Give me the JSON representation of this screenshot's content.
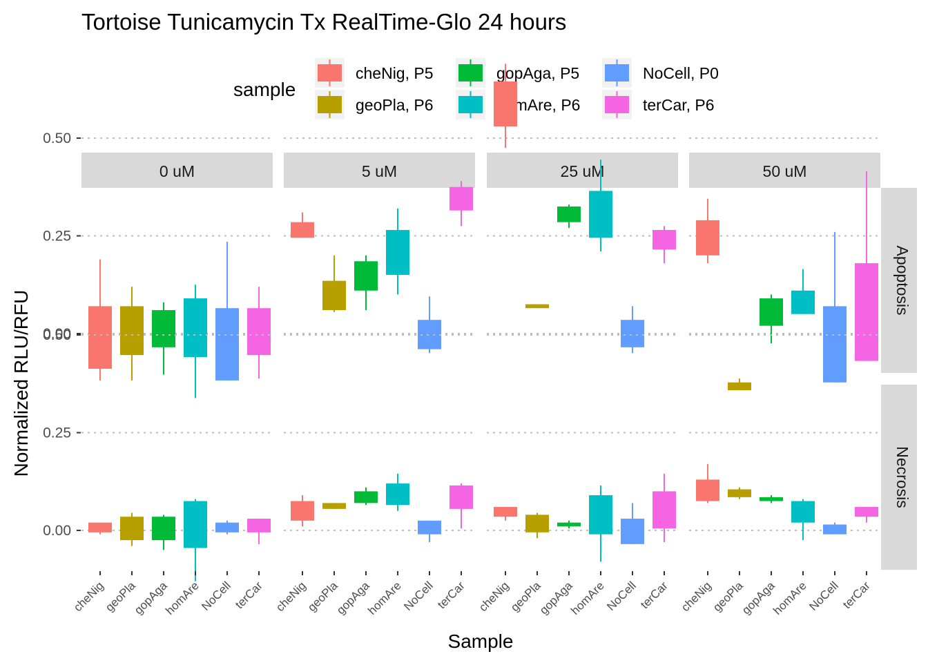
{
  "chart_data": {
    "type": "boxplot",
    "title": "Tortoise Tunicamycin Tx RealTime-Glo 24 hours",
    "xlabel": "Sample",
    "ylabel": "Normalized RLU/RFU",
    "legend": {
      "title": "sample",
      "position": "top",
      "entries": [
        {
          "label": "cheNig, P5",
          "color": "#F8766D"
        },
        {
          "label": "geoPla, P6",
          "color": "#B79F00"
        },
        {
          "label": "gopAga, P5",
          "color": "#00BA38"
        },
        {
          "label": "homAre, P6",
          "color": "#00BFC4"
        },
        {
          "label": "NoCell, P0",
          "color": "#619CFF"
        },
        {
          "label": "terCar, P6",
          "color": "#F564E3"
        }
      ]
    },
    "categories": [
      "cheNig",
      "geoPla",
      "gopAga",
      "homAre",
      "NoCell",
      "terCar"
    ],
    "col_facets": [
      "0 uM",
      "5 uM",
      "25 uM",
      "50 uM"
    ],
    "row_facets": [
      "Apoptosis",
      "Necrosis"
    ],
    "yticks": [
      0.0,
      0.25,
      0.5
    ],
    "ytick_labels": [
      "0.00",
      "0.25",
      "0.50"
    ],
    "ylim": [
      -0.18,
      0.7
    ],
    "grid": "major y only, dotted",
    "boxes": {
      "Apoptosis": {
        "0 uM": [
          {
            "min": -0.12,
            "q1": -0.09,
            "q3": 0.07,
            "max": 0.19
          },
          {
            "min": -0.12,
            "q1": -0.055,
            "q3": 0.07,
            "max": 0.12
          },
          {
            "min": -0.105,
            "q1": -0.035,
            "q3": 0.06,
            "max": 0.08
          },
          {
            "min": -0.165,
            "q1": -0.06,
            "q3": 0.09,
            "max": 0.125
          },
          {
            "min": -0.12,
            "q1": -0.12,
            "q3": 0.065,
            "max": 0.235
          },
          {
            "min": -0.115,
            "q1": -0.055,
            "q3": 0.065,
            "max": 0.12
          }
        ],
        "5 uM": [
          {
            "min": 0.245,
            "q1": 0.245,
            "q3": 0.285,
            "max": 0.31
          },
          {
            "min": 0.055,
            "q1": 0.06,
            "q3": 0.135,
            "max": 0.2
          },
          {
            "min": 0.06,
            "q1": 0.11,
            "q3": 0.185,
            "max": 0.2
          },
          {
            "min": 0.1,
            "q1": 0.15,
            "q3": 0.265,
            "max": 0.32
          },
          {
            "min": -0.05,
            "q1": -0.04,
            "q3": 0.035,
            "max": 0.095
          },
          {
            "min": 0.275,
            "q1": 0.315,
            "q3": 0.375,
            "max": 0.39
          }
        ],
        "25 uM": [
          {
            "min": 0.475,
            "q1": 0.53,
            "q3": 0.645,
            "max": 0.69
          },
          {
            "min": 0.065,
            "q1": 0.065,
            "q3": 0.075,
            "max": 0.075
          },
          {
            "min": 0.27,
            "q1": 0.285,
            "q3": 0.325,
            "max": 0.33
          },
          {
            "min": 0.21,
            "q1": 0.245,
            "q3": 0.365,
            "max": 0.445
          },
          {
            "min": -0.05,
            "q1": -0.035,
            "q3": 0.035,
            "max": 0.07
          },
          {
            "min": 0.18,
            "q1": 0.215,
            "q3": 0.265,
            "max": 0.275
          }
        ],
        "50 uM": [
          {
            "min": 0.18,
            "q1": 0.2,
            "q3": 0.29,
            "max": 0.345
          },
          {
            "min": -0.145,
            "q1": -0.145,
            "q3": -0.125,
            "max": -0.115
          },
          {
            "min": -0.025,
            "q1": 0.02,
            "q3": 0.09,
            "max": 0.1
          },
          {
            "min": 0.05,
            "q1": 0.05,
            "q3": 0.11,
            "max": 0.165
          },
          {
            "min": -0.125,
            "q1": -0.125,
            "q3": 0.07,
            "max": 0.26
          },
          {
            "min": -0.07,
            "q1": -0.07,
            "q3": 0.18,
            "max": 0.415
          }
        ]
      },
      "Necrosis": {
        "0 uM": [
          {
            "min": -0.01,
            "q1": -0.005,
            "q3": 0.02,
            "max": 0.02
          },
          {
            "min": -0.04,
            "q1": -0.025,
            "q3": 0.035,
            "max": 0.045
          },
          {
            "min": -0.05,
            "q1": -0.025,
            "q3": 0.035,
            "max": 0.04
          },
          {
            "min": -0.13,
            "q1": -0.045,
            "q3": 0.075,
            "max": 0.08
          },
          {
            "min": -0.01,
            "q1": -0.005,
            "q3": 0.02,
            "max": 0.025
          },
          {
            "min": -0.035,
            "q1": -0.005,
            "q3": 0.03,
            "max": 0.03
          }
        ],
        "5 uM": [
          {
            "min": 0.01,
            "q1": 0.025,
            "q3": 0.075,
            "max": 0.09
          },
          {
            "min": 0.055,
            "q1": 0.055,
            "q3": 0.07,
            "max": 0.07
          },
          {
            "min": 0.065,
            "q1": 0.07,
            "q3": 0.1,
            "max": 0.11
          },
          {
            "min": 0.05,
            "q1": 0.065,
            "q3": 0.12,
            "max": 0.145
          },
          {
            "min": -0.03,
            "q1": -0.01,
            "q3": 0.025,
            "max": 0.025
          },
          {
            "min": 0.005,
            "q1": 0.055,
            "q3": 0.115,
            "max": 0.12
          }
        ],
        "25 uM": [
          {
            "min": 0.025,
            "q1": 0.035,
            "q3": 0.06,
            "max": 0.06
          },
          {
            "min": -0.02,
            "q1": -0.005,
            "q3": 0.04,
            "max": 0.045
          },
          {
            "min": 0.005,
            "q1": 0.01,
            "q3": 0.02,
            "max": 0.025
          },
          {
            "min": -0.08,
            "q1": -0.01,
            "q3": 0.09,
            "max": 0.115
          },
          {
            "min": -0.035,
            "q1": -0.035,
            "q3": 0.03,
            "max": 0.07
          },
          {
            "min": -0.03,
            "q1": 0.005,
            "q3": 0.1,
            "max": 0.145
          }
        ],
        "50 uM": [
          {
            "min": 0.07,
            "q1": 0.075,
            "q3": 0.13,
            "max": 0.17
          },
          {
            "min": 0.08,
            "q1": 0.085,
            "q3": 0.105,
            "max": 0.11
          },
          {
            "min": 0.07,
            "q1": 0.075,
            "q3": 0.085,
            "max": 0.09
          },
          {
            "min": -0.025,
            "q1": 0.02,
            "q3": 0.075,
            "max": 0.08
          },
          {
            "min": -0.01,
            "q1": -0.01,
            "q3": 0.015,
            "max": 0.02
          },
          {
            "min": 0.02,
            "q1": 0.035,
            "q3": 0.06,
            "max": 0.06
          }
        ]
      }
    }
  }
}
